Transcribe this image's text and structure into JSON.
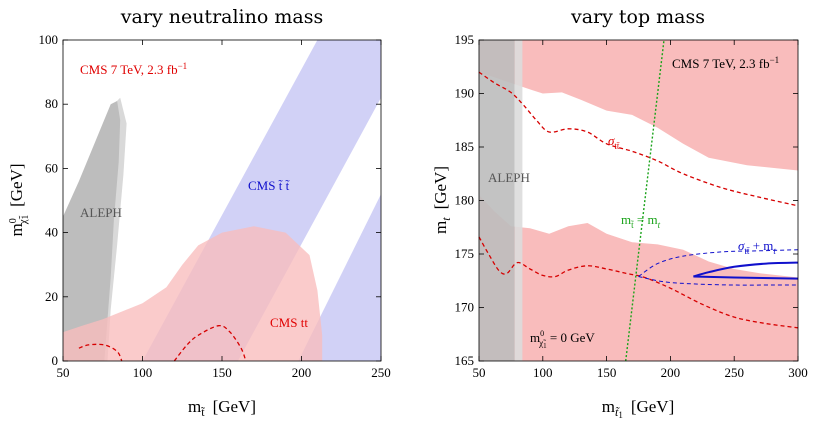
{
  "chart_data": [
    {
      "type": "area",
      "title": "vary neutralino mass",
      "xlabel": "m",
      "xlabel_sub": "t̃",
      "xlabel_unit": "[GeV]",
      "ylabel": "m",
      "ylabel_sub": "χ̃",
      "ylabel_sub_idx": "1",
      "ylabel_sup": "0",
      "ylabel_unit": "[GeV]",
      "xlim": [
        50,
        250
      ],
      "ylim": [
        0,
        100
      ],
      "xticks": [
        50,
        100,
        150,
        200,
        250
      ],
      "yticks": [
        0,
        20,
        40,
        60,
        80,
        100
      ],
      "annotations": {
        "cms_energy": "CMS 7 TeV, 2.3 fb",
        "cms_energy_sup": "−1",
        "cms_stop": "CMS  t̃ t̃",
        "aleph": "ALEPH",
        "cms_tt": "CMS tt"
      },
      "colors": {
        "blue": "#c9c9f5",
        "red": "#f9bcbc",
        "gray": "#bdbdbd",
        "dashed": "#d60000"
      },
      "regions": {
        "aleph_dark": [
          [
            50,
            45
          ],
          [
            60,
            56
          ],
          [
            70,
            68
          ],
          [
            80,
            80
          ],
          [
            84,
            81
          ],
          [
            86,
            75
          ],
          [
            85,
            62
          ],
          [
            82,
            44
          ],
          [
            80,
            26
          ],
          [
            78,
            13
          ],
          [
            76,
            0
          ],
          [
            50,
            0
          ]
        ],
        "aleph_light": [
          [
            50,
            44
          ],
          [
            62,
            58
          ],
          [
            72,
            70
          ],
          [
            80,
            79
          ],
          [
            86,
            82
          ],
          [
            90,
            74
          ],
          [
            88,
            58
          ],
          [
            84,
            36
          ],
          [
            80,
            16
          ],
          [
            78,
            0
          ],
          [
            50,
            0
          ]
        ],
        "blue_band_1": [
          [
            100,
            0
          ],
          [
            210,
            100
          ],
          [
            250,
            100
          ],
          [
            250,
            82
          ],
          [
            160,
            0
          ]
        ],
        "blue_band_2": [
          [
            198,
            0
          ],
          [
            250,
            52
          ],
          [
            250,
            0
          ]
        ],
        "cms_tt": [
          [
            50,
            9
          ],
          [
            62,
            11
          ],
          [
            75,
            13
          ],
          [
            90,
            16
          ],
          [
            100,
            18
          ],
          [
            115,
            23
          ],
          [
            125,
            30
          ],
          [
            135,
            36
          ],
          [
            150,
            40
          ],
          [
            170,
            42
          ],
          [
            190,
            40
          ],
          [
            205,
            33
          ],
          [
            210,
            22
          ],
          [
            213,
            8
          ],
          [
            213,
            0
          ],
          [
            50,
            0
          ]
        ],
        "cms_tt_dashed_1": [
          [
            60,
            4
          ],
          [
            66,
            5
          ],
          [
            76,
            5
          ],
          [
            84,
            3
          ],
          [
            87,
            0
          ]
        ],
        "cms_tt_dashed_2": [
          [
            120,
            0
          ],
          [
            128,
            5
          ],
          [
            135,
            8
          ],
          [
            148,
            11
          ],
          [
            155,
            9
          ],
          [
            162,
            4
          ],
          [
            165,
            0
          ]
        ]
      }
    },
    {
      "type": "area",
      "title": "vary top mass",
      "xlabel": "m",
      "xlabel_sub": "t̃",
      "xlabel_sub_idx": "1",
      "xlabel_unit": "[GeV]",
      "ylabel": "m",
      "ylabel_sub": "t",
      "ylabel_unit": "[GeV]",
      "xlim": [
        50,
        300
      ],
      "ylim": [
        165,
        195
      ],
      "xticks": [
        50,
        100,
        150,
        200,
        250,
        300
      ],
      "yticks": [
        165,
        170,
        175,
        180,
        185,
        190,
        195
      ],
      "annotations": {
        "cms_energy": "CMS 7 TeV, 2.3 fb",
        "cms_energy_sup": "−1",
        "aleph": "ALEPH",
        "sigma_tt": "σ",
        "sigma_tt_sub": "tt̄",
        "mstop_eq_mt": "m",
        "mstop_eq_mt_sub": "t̃",
        "mstop_eq_mt_rhs": " = m",
        "mstop_eq_mt_rhs_sub": "t",
        "sigma_plus_mt": "σ",
        "sigma_plus_mt_sub": "tt̄",
        "sigma_plus_mt_rhs": " + m",
        "sigma_plus_mt_rhs_sub": "t",
        "neutralino_zero": "m",
        "neutralino_zero_sub": "χ̃",
        "neutralino_zero_sup": "0",
        "neutralino_zero_sub_idx": "1",
        "neutralino_zero_rhs": " = 0 GeV"
      },
      "colors": {
        "red": "#f9bcbc",
        "gray": "#bdbdbd",
        "lightgray": "#dcdcdc",
        "dashed": "#d60000",
        "green": "#1aa31a",
        "blue": "#1010cc"
      },
      "regions": {
        "red_upper": [
          [
            50,
            195
          ],
          [
            300,
            195
          ],
          [
            300,
            182.8
          ],
          [
            260,
            183.3
          ],
          [
            230,
            184
          ],
          [
            210,
            185.3
          ],
          [
            190,
            186.8
          ],
          [
            170,
            188
          ],
          [
            150,
            188.4
          ],
          [
            130,
            189.4
          ],
          [
            115,
            190.1
          ],
          [
            100,
            190
          ],
          [
            92,
            190.3
          ],
          [
            50,
            192
          ]
        ],
        "red_lower": [
          [
            50,
            180.5
          ],
          [
            62,
            179
          ],
          [
            75,
            177.6
          ],
          [
            90,
            177.4
          ],
          [
            105,
            176.9
          ],
          [
            120,
            177.6
          ],
          [
            135,
            177.9
          ],
          [
            150,
            176.9
          ],
          [
            170,
            176.1
          ],
          [
            190,
            175.9
          ],
          [
            210,
            175.4
          ],
          [
            230,
            174.3
          ],
          [
            250,
            173.6
          ],
          [
            270,
            173.2
          ],
          [
            300,
            172.8
          ],
          [
            300,
            165
          ],
          [
            50,
            165
          ]
        ],
        "gray_dark": [
          [
            50,
            195
          ],
          [
            78,
            195
          ],
          [
            78,
            165
          ],
          [
            50,
            165
          ]
        ],
        "gray_light": [
          [
            78,
            195
          ],
          [
            84,
            195
          ],
          [
            84,
            165
          ],
          [
            78,
            165
          ]
        ],
        "dashed_upper": [
          [
            50,
            192
          ],
          [
            62,
            191
          ],
          [
            75,
            190.1
          ],
          [
            85,
            188.9
          ],
          [
            95,
            187.5
          ],
          [
            105,
            186.4
          ],
          [
            120,
            186.7
          ],
          [
            135,
            186.4
          ],
          [
            150,
            185.3
          ],
          [
            170,
            184.6
          ],
          [
            190,
            183.7
          ],
          [
            210,
            182.5
          ],
          [
            240,
            181.2
          ],
          [
            270,
            180.3
          ],
          [
            300,
            179.5
          ]
        ],
        "dashed_lower": [
          [
            50,
            176.6
          ],
          [
            58,
            174.9
          ],
          [
            66,
            173.4
          ],
          [
            72,
            173.2
          ],
          [
            80,
            174.2
          ],
          [
            90,
            173.6
          ],
          [
            100,
            173
          ],
          [
            110,
            172.9
          ],
          [
            120,
            173.5
          ],
          [
            135,
            173.9
          ],
          [
            150,
            173.6
          ],
          [
            165,
            173.2
          ],
          [
            180,
            172.8
          ],
          [
            200,
            171.8
          ],
          [
            225,
            170.3
          ],
          [
            250,
            169.1
          ],
          [
            275,
            168.5
          ],
          [
            300,
            168.1
          ]
        ],
        "green_line": [
          [
            165,
            165
          ],
          [
            195,
            195
          ]
        ],
        "blue_solid": [
          [
            218,
            172.9
          ],
          [
            230,
            173.3
          ],
          [
            250,
            173.8
          ],
          [
            275,
            174.1
          ],
          [
            300,
            174.2
          ]
        ],
        "blue_solid_2": [
          [
            218,
            172.9
          ],
          [
            250,
            172.8
          ],
          [
            300,
            172.7
          ]
        ],
        "blue_dashed": [
          [
            175,
            172.9
          ],
          [
            190,
            174.1
          ],
          [
            210,
            174.8
          ],
          [
            240,
            175.2
          ],
          [
            270,
            175.3
          ],
          [
            300,
            175.4
          ]
        ],
        "blue_dashed_2": [
          [
            175,
            172.9
          ],
          [
            195,
            172.4
          ],
          [
            220,
            172.2
          ],
          [
            250,
            172.1
          ],
          [
            280,
            172.1
          ],
          [
            300,
            172.1
          ]
        ]
      }
    }
  ]
}
